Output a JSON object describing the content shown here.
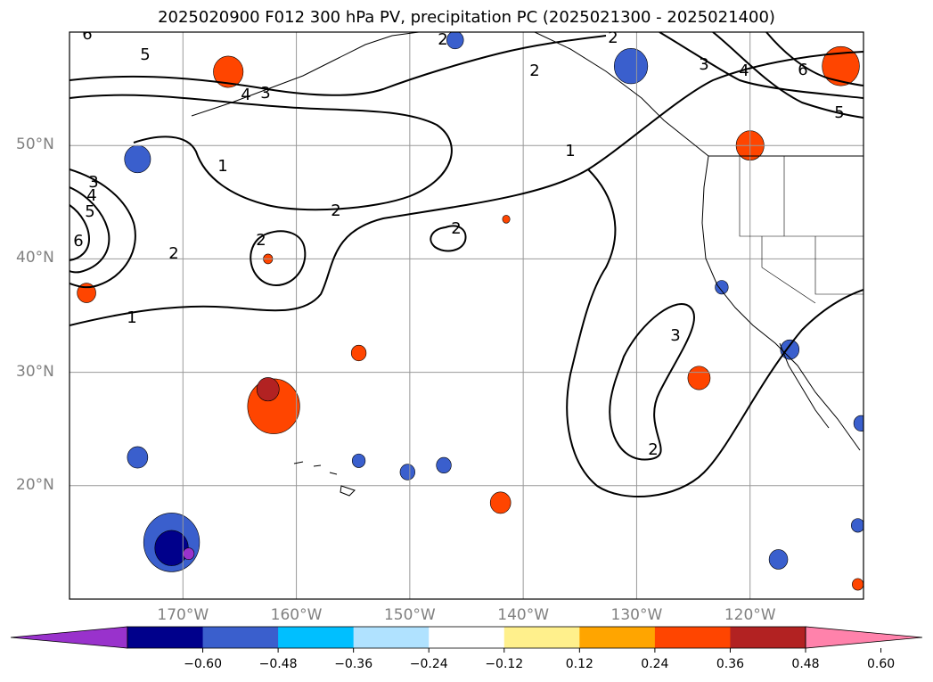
{
  "title": "2025020900 F012 300 hPa PV, precipitation PC (2025021300 - 2025021400)",
  "map": {
    "lon_range": [
      -180,
      -110
    ],
    "lat_range": [
      10,
      60
    ],
    "lat_labels": [
      {
        "value": 50,
        "text": "50°N"
      },
      {
        "value": 40,
        "text": "40°N"
      },
      {
        "value": 30,
        "text": "30°N"
      },
      {
        "value": 20,
        "text": "20°N"
      }
    ],
    "lon_labels": [
      {
        "value": -170,
        "text": "170°W"
      },
      {
        "value": -160,
        "text": "160°W"
      },
      {
        "value": -150,
        "text": "150°W"
      },
      {
        "value": -140,
        "text": "140°W"
      },
      {
        "value": -130,
        "text": "130°W"
      },
      {
        "value": -120,
        "text": "120°W"
      }
    ],
    "contour_labels": [
      "1",
      "2",
      "3",
      "4",
      "5",
      "6"
    ],
    "precip_blobs": [
      {
        "lon": -166,
        "lat": 56.5,
        "color": "#ff4500",
        "size": 1.6
      },
      {
        "lon": -112,
        "lat": 57,
        "color": "#ff4500",
        "size": 2.0
      },
      {
        "lon": -120,
        "lat": 50,
        "color": "#ff4500",
        "size": 1.5
      },
      {
        "lon": -130.5,
        "lat": 57,
        "color": "#3a5fcd",
        "size": 1.8
      },
      {
        "lon": -146,
        "lat": 59.3,
        "color": "#3a5fcd",
        "size": 0.9
      },
      {
        "lon": -174,
        "lat": 48.8,
        "color": "#3a5fcd",
        "size": 1.4
      },
      {
        "lon": -178.5,
        "lat": 37,
        "color": "#ff4500",
        "size": 1.0
      },
      {
        "lon": -162,
        "lat": 27,
        "color": "#ff4500",
        "size": 2.8
      },
      {
        "lon": -162.5,
        "lat": 28.5,
        "color": "#b22222",
        "size": 1.2
      },
      {
        "lon": -154.5,
        "lat": 31.7,
        "color": "#ff4500",
        "size": 0.8
      },
      {
        "lon": -162.5,
        "lat": 40,
        "color": "#ff4500",
        "size": 0.5
      },
      {
        "lon": -141.5,
        "lat": 43.5,
        "color": "#ff4500",
        "size": 0.4
      },
      {
        "lon": -124.5,
        "lat": 29.5,
        "color": "#ff4500",
        "size": 1.2
      },
      {
        "lon": -142,
        "lat": 18.5,
        "color": "#ff4500",
        "size": 1.1
      },
      {
        "lon": -171,
        "lat": 15,
        "color": "#3a5fcd",
        "size": 3.0
      },
      {
        "lon": -171,
        "lat": 14.5,
        "color": "#00008b",
        "size": 1.8
      },
      {
        "lon": -169.5,
        "lat": 14,
        "color": "#9932cc",
        "size": 0.6
      },
      {
        "lon": -174,
        "lat": 22.5,
        "color": "#3a5fcd",
        "size": 1.1
      },
      {
        "lon": -154.5,
        "lat": 22.2,
        "color": "#3a5fcd",
        "size": 0.7
      },
      {
        "lon": -150.2,
        "lat": 21.2,
        "color": "#3a5fcd",
        "size": 0.8
      },
      {
        "lon": -147,
        "lat": 21.8,
        "color": "#3a5fcd",
        "size": 0.8
      },
      {
        "lon": -122.5,
        "lat": 37.5,
        "color": "#3a5fcd",
        "size": 0.7
      },
      {
        "lon": -116.5,
        "lat": 32,
        "color": "#3a5fcd",
        "size": 1.0
      },
      {
        "lon": -117.5,
        "lat": 13.5,
        "color": "#3a5fcd",
        "size": 1.0
      },
      {
        "lon": -110.2,
        "lat": 25.5,
        "color": "#3a5fcd",
        "size": 0.8
      },
      {
        "lon": -110.5,
        "lat": 16.5,
        "color": "#3a5fcd",
        "size": 0.7
      },
      {
        "lon": -110.5,
        "lat": 11.3,
        "color": "#ff4500",
        "size": 0.6
      }
    ]
  },
  "colorbar": {
    "colors": [
      "#9932cc",
      "#00008b",
      "#3a5fcd",
      "#00bfff",
      "#b0e2ff",
      "#ffffff",
      "#fff08c",
      "#ffa500",
      "#ff4500",
      "#b22222",
      "#ff82ab"
    ],
    "ticks": [
      "−0.60",
      "−0.48",
      "−0.36",
      "−0.24",
      "−0.12",
      "0.12",
      "0.24",
      "0.36",
      "0.48",
      "0.60"
    ]
  }
}
